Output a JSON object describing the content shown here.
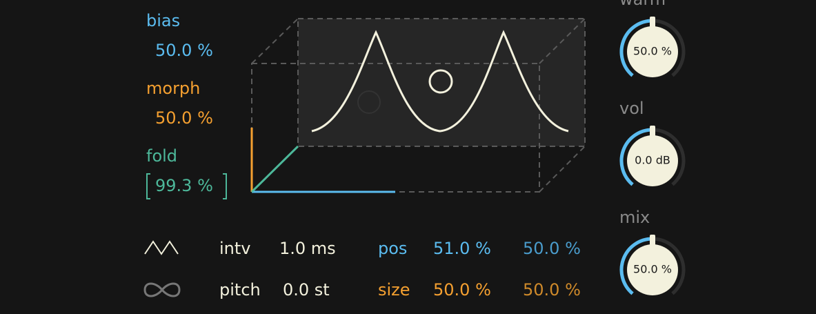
{
  "params": {
    "bias": {
      "label": "bias",
      "value": "50.0 %"
    },
    "morph": {
      "label": "morph",
      "value": "50.0 %"
    },
    "fold": {
      "label": "fold",
      "value": "99.3 %"
    }
  },
  "controls": {
    "intv": {
      "label": "intv",
      "value": "1.0 ms"
    },
    "pitch": {
      "label": "pitch",
      "value": "0.0 st"
    },
    "pos": {
      "label": "pos",
      "left": "51.0 %",
      "right": "50.0 %"
    },
    "size": {
      "label": "size",
      "left": "50.0 %",
      "right": "50.0 %"
    }
  },
  "knobs": [
    {
      "label": "warm",
      "value": "50.0 %"
    },
    {
      "label": "vol",
      "value": "0.0 dB"
    },
    {
      "label": "mix",
      "value": "50.0 %"
    }
  ]
}
